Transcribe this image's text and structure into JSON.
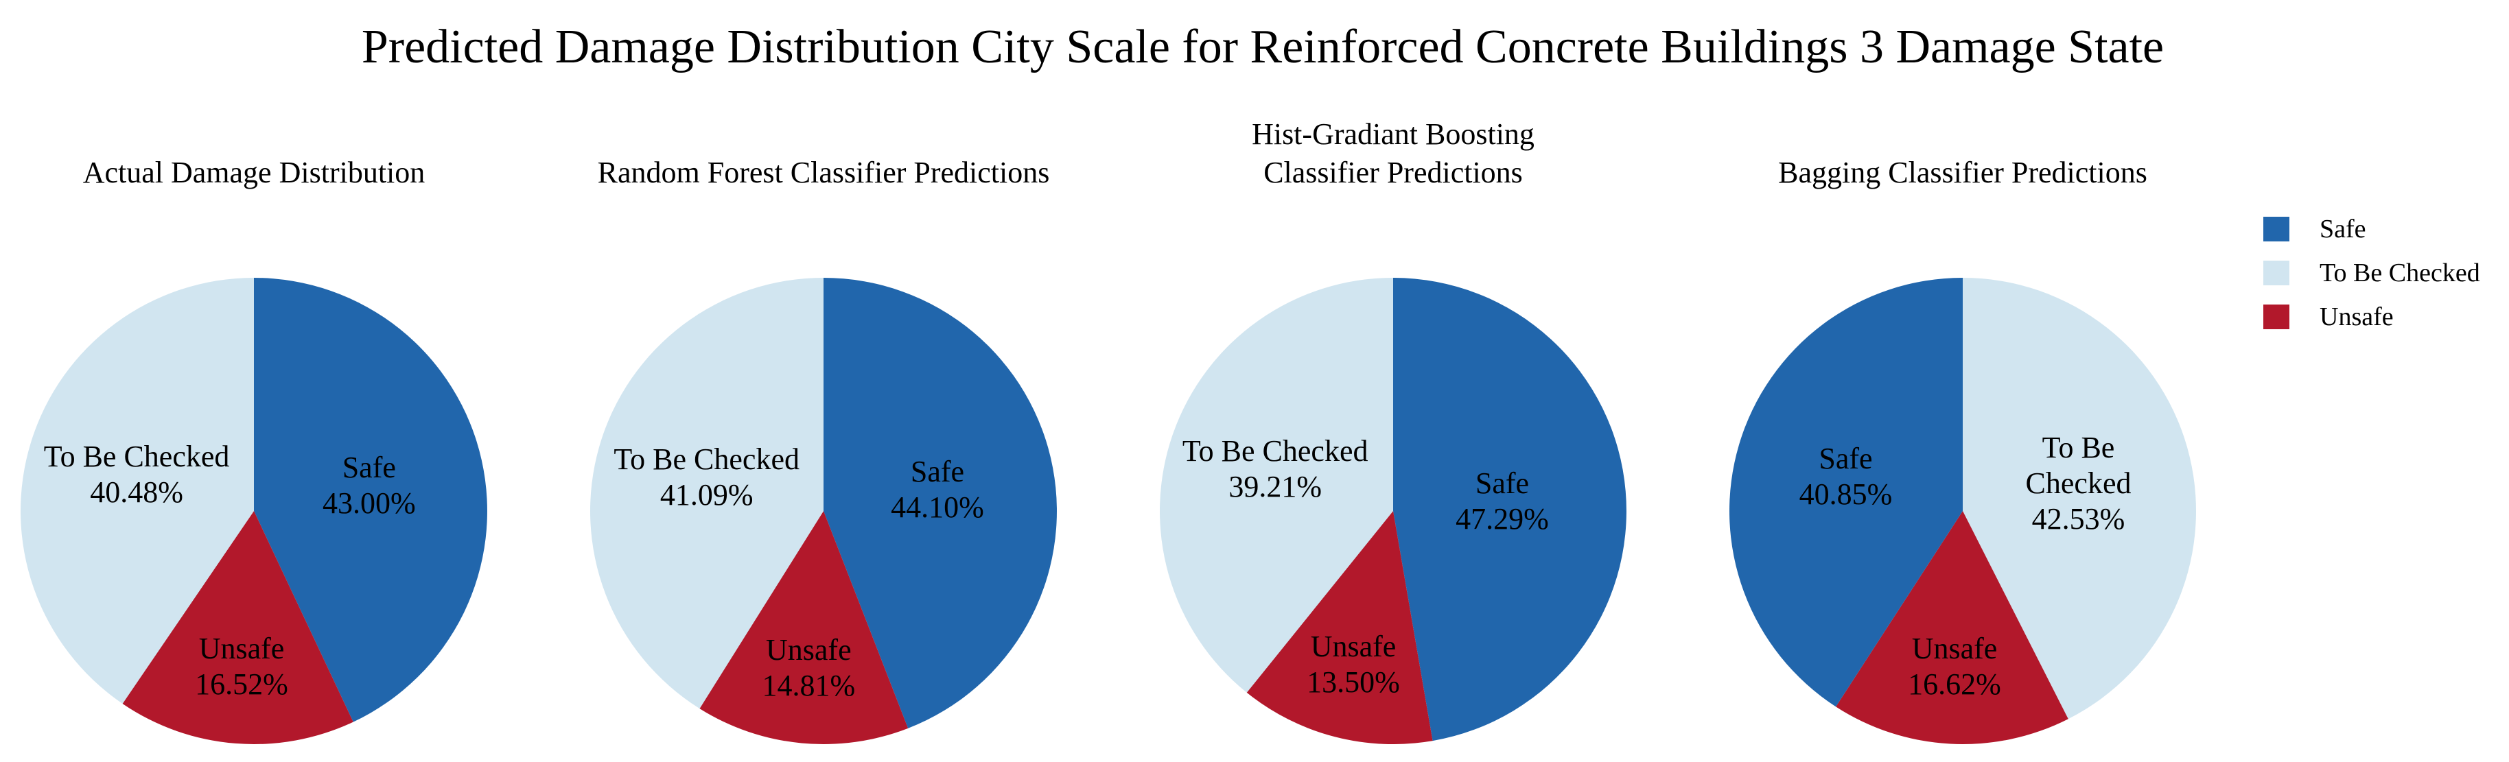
{
  "title": "Predicted Damage Distribution City Scale for Reinforced Concrete Buildings 3 Damage State",
  "category_colors": {
    "Safe": "#2166ac",
    "To Be Checked": "#d1e5f0",
    "Unsafe": "#b2182b"
  },
  "legend": {
    "position": "right",
    "labels": [
      "Safe",
      "To Be Checked",
      "Unsafe"
    ]
  },
  "chart_data": [
    {
      "type": "pie",
      "title": "Actual Damage Distribution",
      "start_angle": "top",
      "direction": "clockwise",
      "categories": [
        "Safe",
        "Unsafe",
        "To Be Checked"
      ],
      "values": [
        43.0,
        16.52,
        40.48
      ],
      "pct_labels": [
        "43.00%",
        "16.52%",
        "40.48%"
      ]
    },
    {
      "type": "pie",
      "title": "Random Forest Classifier Predictions",
      "start_angle": "top",
      "direction": "clockwise",
      "categories": [
        "Safe",
        "Unsafe",
        "To Be Checked"
      ],
      "values": [
        44.1,
        14.81,
        41.09
      ],
      "pct_labels": [
        "44.10%",
        "14.81%",
        "41.09%"
      ]
    },
    {
      "type": "pie",
      "title": "Hist-Gradiant Boosting\nClassifier Predictions",
      "start_angle": "top",
      "direction": "clockwise",
      "categories": [
        "Safe",
        "Unsafe",
        "To Be Checked"
      ],
      "values": [
        47.29,
        13.5,
        39.21
      ],
      "pct_labels": [
        "47.29%",
        "13.50%",
        "39.21%"
      ]
    },
    {
      "type": "pie",
      "title": "Bagging Classifier Predictions",
      "start_angle": "top",
      "direction": "clockwise",
      "categories": [
        "To Be Checked",
        "Unsafe",
        "Safe"
      ],
      "values": [
        42.53,
        16.62,
        40.85
      ],
      "pct_labels": [
        "42.53%",
        "16.62%",
        "40.85%"
      ]
    }
  ]
}
